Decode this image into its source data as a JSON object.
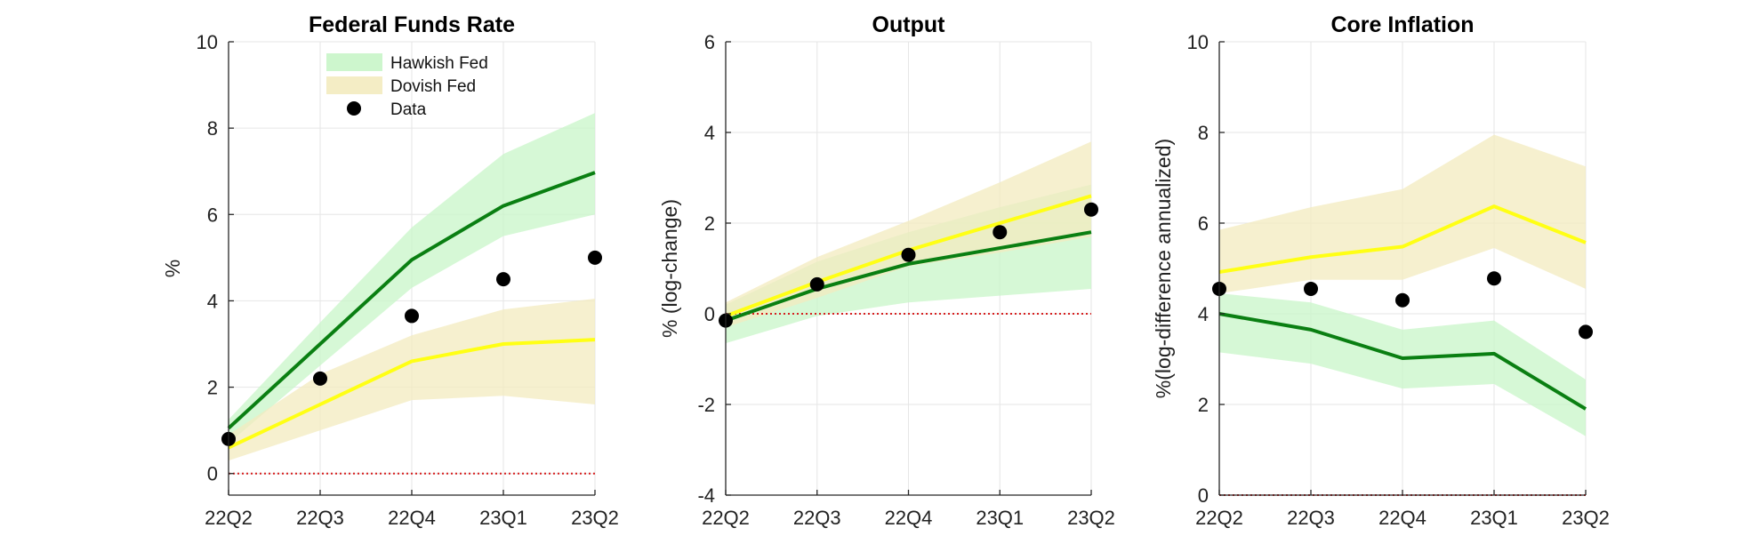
{
  "chart_data": [
    {
      "type": "line",
      "title": "Federal Funds Rate",
      "xlabel": "",
      "ylabel": "%",
      "categories": [
        "22Q2",
        "22Q3",
        "22Q4",
        "23Q1",
        "23Q2"
      ],
      "ylim": [
        -0.5,
        10
      ],
      "yticks": [
        0,
        2,
        4,
        6,
        8,
        10
      ],
      "grid": true,
      "reference_line": 0,
      "legend": {
        "placement": "top-center",
        "entries": [
          "Hawkish Fed",
          "Dovish Fed",
          "Data"
        ]
      },
      "bands": [
        {
          "name": "Hawkish Fed",
          "lower": [
            0.7,
            2.5,
            4.3,
            5.5,
            6.0
          ],
          "upper": [
            1.25,
            3.5,
            5.7,
            7.4,
            8.35
          ],
          "color": "#c8f5c8"
        },
        {
          "name": "Dovish Fed",
          "lower": [
            0.3,
            1.0,
            1.7,
            1.8,
            1.6
          ],
          "upper": [
            0.9,
            2.3,
            3.2,
            3.8,
            4.05
          ],
          "color": "#f3ebbf"
        }
      ],
      "series": [
        {
          "name": "Hawkish Fed",
          "values": [
            1.05,
            3.0,
            4.95,
            6.2,
            6.97
          ],
          "color": "#0a7f12"
        },
        {
          "name": "Dovish Fed",
          "values": [
            0.6,
            1.6,
            2.6,
            3.0,
            3.1
          ],
          "color": "#ffff14"
        }
      ],
      "points": {
        "name": "Data",
        "values": [
          0.8,
          2.2,
          3.65,
          4.5,
          5.0
        ],
        "color": "#000000"
      }
    },
    {
      "type": "line",
      "title": "Output",
      "xlabel": "",
      "ylabel": "% (log-change)",
      "categories": [
        "22Q2",
        "22Q3",
        "22Q4",
        "23Q1",
        "23Q2"
      ],
      "ylim": [
        -4,
        6
      ],
      "yticks": [
        -4,
        -2,
        0,
        2,
        4,
        6
      ],
      "grid": true,
      "reference_line": 0,
      "bands": [
        {
          "name": "Hawkish Fed",
          "lower": [
            -0.65,
            -0.05,
            0.25,
            0.4,
            0.55
          ],
          "upper": [
            0.2,
            1.15,
            1.8,
            2.35,
            2.85
          ],
          "color": "#c8f5c8"
        },
        {
          "name": "Dovish Fed",
          "lower": [
            -0.3,
            0.35,
            1.05,
            1.35,
            1.7
          ],
          "upper": [
            0.25,
            1.25,
            2.05,
            2.9,
            3.8
          ],
          "color": "#f3ebbf"
        }
      ],
      "series": [
        {
          "name": "Hawkish Fed",
          "values": [
            -0.15,
            0.55,
            1.1,
            1.45,
            1.8
          ],
          "color": "#0a7f12"
        },
        {
          "name": "Dovish Fed",
          "values": [
            -0.05,
            0.7,
            1.4,
            2.0,
            2.6
          ],
          "color": "#ffff14"
        }
      ],
      "points": {
        "name": "Data",
        "values": [
          -0.15,
          0.65,
          1.3,
          1.8,
          2.3
        ],
        "color": "#000000"
      }
    },
    {
      "type": "line",
      "title": "Core Inflation",
      "xlabel": "",
      "ylabel": "%(log-difference annualized)",
      "categories": [
        "22Q2",
        "22Q3",
        "22Q4",
        "23Q1",
        "23Q2"
      ],
      "ylim": [
        0,
        10
      ],
      "yticks": [
        0,
        2,
        4,
        6,
        8,
        10
      ],
      "grid": true,
      "reference_line": 0,
      "bands": [
        {
          "name": "Hawkish Fed",
          "lower": [
            3.15,
            2.9,
            2.35,
            2.45,
            1.3
          ],
          "upper": [
            4.45,
            4.25,
            3.65,
            3.85,
            2.55
          ],
          "color": "#c8f5c8"
        },
        {
          "name": "Dovish Fed",
          "lower": [
            4.45,
            4.75,
            4.75,
            5.45,
            4.55
          ],
          "upper": [
            5.85,
            6.35,
            6.75,
            7.95,
            7.25
          ],
          "color": "#f3ebbf"
        }
      ],
      "series": [
        {
          "name": "Hawkish Fed",
          "values": [
            4.0,
            3.65,
            3.02,
            3.12,
            1.9
          ],
          "color": "#0a7f12"
        },
        {
          "name": "Dovish Fed",
          "values": [
            4.92,
            5.25,
            5.48,
            6.37,
            5.57
          ],
          "color": "#ffff14"
        }
      ],
      "points": {
        "name": "Data",
        "values": [
          4.55,
          4.55,
          4.3,
          4.78,
          3.6
        ],
        "color": "#000000"
      }
    }
  ]
}
